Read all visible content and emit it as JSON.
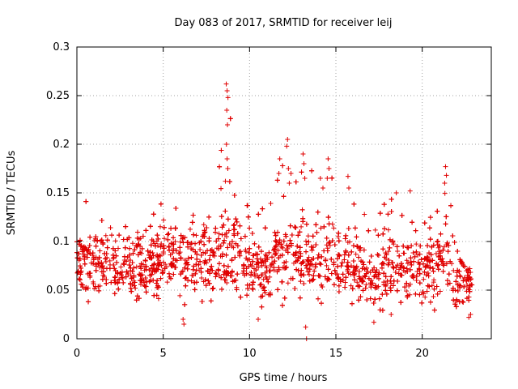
{
  "chart_data": {
    "type": "scatter",
    "title": "Day 083 of 2017, SRMTID for receiver leij",
    "xlabel": "GPS time / hours",
    "ylabel": "SRMTID / TECUs",
    "xlim": [
      0,
      24
    ],
    "ylim": [
      0,
      0.3
    ],
    "xticks": [
      0,
      5,
      10,
      15,
      20
    ],
    "xtick_labels": [
      "0",
      "5",
      "10",
      "15",
      "20"
    ],
    "yticks": [
      0,
      0.05,
      0.1,
      0.15,
      0.2,
      0.25,
      0.3
    ],
    "ytick_labels": [
      "0",
      "0.05",
      "0.1",
      "0.15",
      "0.2",
      "0.25",
      "0.3"
    ],
    "grid": true,
    "marker": "plus",
    "color": "#e00000",
    "x_range_data": [
      0,
      22.9
    ],
    "profile": [
      {
        "x": 0.0,
        "center": 0.075,
        "spread": 0.022,
        "peak": 0.1
      },
      {
        "x": 0.6,
        "center": 0.08,
        "spread": 0.026,
        "peak": 0.15
      },
      {
        "x": 1.5,
        "center": 0.075,
        "spread": 0.022,
        "peak": 0.12
      },
      {
        "x": 3.0,
        "center": 0.075,
        "spread": 0.022,
        "peak": 0.125
      },
      {
        "x": 4.2,
        "center": 0.07,
        "spread": 0.022,
        "peak": 0.12
      },
      {
        "x": 5.0,
        "center": 0.085,
        "spread": 0.028,
        "peak": 0.152
      },
      {
        "x": 6.0,
        "center": 0.08,
        "spread": 0.026,
        "peak": 0.14
      },
      {
        "x": 7.0,
        "center": 0.085,
        "spread": 0.026,
        "peak": 0.14
      },
      {
        "x": 8.0,
        "center": 0.08,
        "spread": 0.026,
        "peak": 0.14
      },
      {
        "x": 8.7,
        "center": 0.085,
        "spread": 0.03,
        "peak": 0.262
      },
      {
        "x": 9.3,
        "center": 0.085,
        "spread": 0.028,
        "peak": 0.155
      },
      {
        "x": 10.3,
        "center": 0.07,
        "spread": 0.024,
        "peak": 0.13
      },
      {
        "x": 11.3,
        "center": 0.075,
        "spread": 0.026,
        "peak": 0.14
      },
      {
        "x": 12.0,
        "center": 0.085,
        "spread": 0.03,
        "peak": 0.205
      },
      {
        "x": 12.7,
        "center": 0.09,
        "spread": 0.03,
        "peak": 0.17
      },
      {
        "x": 13.3,
        "center": 0.085,
        "spread": 0.03,
        "peak": 0.19
      },
      {
        "x": 14.0,
        "center": 0.085,
        "spread": 0.03,
        "peak": 0.165
      },
      {
        "x": 14.7,
        "center": 0.09,
        "spread": 0.03,
        "peak": 0.185
      },
      {
        "x": 15.7,
        "center": 0.08,
        "spread": 0.028,
        "peak": 0.167
      },
      {
        "x": 17.0,
        "center": 0.065,
        "spread": 0.024,
        "peak": 0.13
      },
      {
        "x": 18.5,
        "center": 0.07,
        "spread": 0.024,
        "peak": 0.15
      },
      {
        "x": 19.5,
        "center": 0.075,
        "spread": 0.026,
        "peak": 0.15
      },
      {
        "x": 20.5,
        "center": 0.07,
        "spread": 0.024,
        "peak": 0.13
      },
      {
        "x": 21.3,
        "center": 0.08,
        "spread": 0.028,
        "peak": 0.177
      },
      {
        "x": 22.0,
        "center": 0.06,
        "spread": 0.02,
        "peak": 0.1
      },
      {
        "x": 22.9,
        "center": 0.055,
        "spread": 0.018,
        "peak": 0.08
      }
    ],
    "notable_points": [
      {
        "x": 8.65,
        "y": 0.262
      },
      {
        "x": 8.7,
        "y": 0.255
      },
      {
        "x": 8.75,
        "y": 0.248
      },
      {
        "x": 8.68,
        "y": 0.235
      },
      {
        "x": 8.72,
        "y": 0.22
      },
      {
        "x": 8.66,
        "y": 0.2
      },
      {
        "x": 8.7,
        "y": 0.185
      },
      {
        "x": 8.74,
        "y": 0.175
      },
      {
        "x": 8.6,
        "y": 0.162
      },
      {
        "x": 11.7,
        "y": 0.17
      },
      {
        "x": 11.75,
        "y": 0.185
      },
      {
        "x": 12.2,
        "y": 0.205
      },
      {
        "x": 12.15,
        "y": 0.198
      },
      {
        "x": 12.25,
        "y": 0.175
      },
      {
        "x": 12.4,
        "y": 0.17
      },
      {
        "x": 12.3,
        "y": 0.16
      },
      {
        "x": 13.1,
        "y": 0.19
      },
      {
        "x": 13.15,
        "y": 0.18
      },
      {
        "x": 13.2,
        "y": 0.165
      },
      {
        "x": 14.1,
        "y": 0.165
      },
      {
        "x": 14.25,
        "y": 0.155
      },
      {
        "x": 14.55,
        "y": 0.185
      },
      {
        "x": 14.6,
        "y": 0.175
      },
      {
        "x": 14.5,
        "y": 0.165
      },
      {
        "x": 15.7,
        "y": 0.167
      },
      {
        "x": 15.75,
        "y": 0.155
      },
      {
        "x": 18.5,
        "y": 0.15
      },
      {
        "x": 19.3,
        "y": 0.152
      },
      {
        "x": 21.35,
        "y": 0.177
      },
      {
        "x": 21.4,
        "y": 0.168
      },
      {
        "x": 21.3,
        "y": 0.16
      },
      {
        "x": 13.3,
        "y": 0.0
      },
      {
        "x": 13.25,
        "y": 0.012
      },
      {
        "x": 6.2,
        "y": 0.015
      },
      {
        "x": 6.15,
        "y": 0.02
      },
      {
        "x": 17.2,
        "y": 0.017
      },
      {
        "x": 10.5,
        "y": 0.02
      },
      {
        "x": 18.2,
        "y": 0.025
      },
      {
        "x": 22.7,
        "y": 0.022
      },
      {
        "x": 22.8,
        "y": 0.025
      }
    ],
    "points_per_hour": 140
  }
}
